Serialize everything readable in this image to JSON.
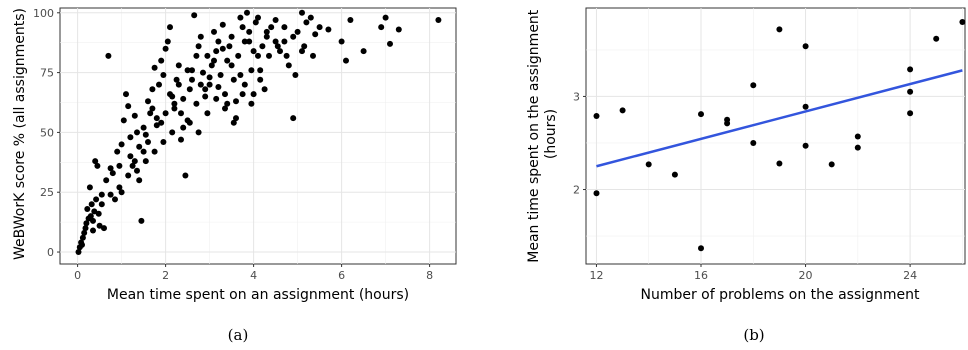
{
  "chart_data": [
    {
      "type": "scatter",
      "caption": "(a)",
      "xlabel": "Mean time spent on an assignment (hours)",
      "ylabel": "WeBWorK score % (all assignments)",
      "xlim": [
        -0.4,
        8.6
      ],
      "ylim": [
        -5,
        102
      ],
      "xticks": [
        0,
        2,
        4,
        6,
        8
      ],
      "yticks": [
        0,
        25,
        50,
        75,
        100
      ],
      "grid": true,
      "points": [
        [
          0.02,
          0
        ],
        [
          0.05,
          2
        ],
        [
          0.08,
          4
        ],
        [
          0.1,
          3
        ],
        [
          0.12,
          6
        ],
        [
          0.15,
          8
        ],
        [
          0.18,
          10
        ],
        [
          0.2,
          12
        ],
        [
          0.22,
          18
        ],
        [
          0.25,
          14
        ],
        [
          0.28,
          27
        ],
        [
          0.3,
          15
        ],
        [
          0.32,
          20
        ],
        [
          0.35,
          13
        ],
        [
          0.38,
          17
        ],
        [
          0.4,
          38
        ],
        [
          0.42,
          22
        ],
        [
          0.45,
          36
        ],
        [
          0.48,
          16
        ],
        [
          0.5,
          11
        ],
        [
          0.55,
          24
        ],
        [
          0.6,
          10
        ],
        [
          0.65,
          30
        ],
        [
          0.7,
          82
        ],
        [
          0.75,
          35
        ],
        [
          0.8,
          33
        ],
        [
          0.85,
          22
        ],
        [
          0.9,
          42
        ],
        [
          0.95,
          27
        ],
        [
          1.0,
          25
        ],
        [
          1.05,
          55
        ],
        [
          1.1,
          66
        ],
        [
          1.15,
          61
        ],
        [
          1.2,
          48
        ],
        [
          1.25,
          36
        ],
        [
          1.3,
          38
        ],
        [
          1.35,
          50
        ],
        [
          1.4,
          30
        ],
        [
          1.45,
          13
        ],
        [
          1.5,
          42
        ],
        [
          1.55,
          49
        ],
        [
          1.6,
          63
        ],
        [
          1.65,
          58
        ],
        [
          1.7,
          68
        ],
        [
          1.75,
          77
        ],
        [
          1.8,
          56
        ],
        [
          1.85,
          70
        ],
        [
          1.9,
          80
        ],
        [
          1.95,
          74
        ],
        [
          2.0,
          85
        ],
        [
          2.05,
          88
        ],
        [
          2.1,
          94
        ],
        [
          2.15,
          65
        ],
        [
          2.2,
          60
        ],
        [
          2.25,
          72
        ],
        [
          2.3,
          78
        ],
        [
          2.35,
          47
        ],
        [
          2.4,
          52
        ],
        [
          2.45,
          32
        ],
        [
          2.5,
          55
        ],
        [
          2.55,
          68
        ],
        [
          2.6,
          72
        ],
        [
          2.65,
          99
        ],
        [
          2.7,
          82
        ],
        [
          2.75,
          86
        ],
        [
          2.8,
          90
        ],
        [
          2.85,
          75
        ],
        [
          2.9,
          65
        ],
        [
          2.95,
          58
        ],
        [
          3.0,
          70
        ],
        [
          3.05,
          78
        ],
        [
          3.1,
          92
        ],
        [
          3.15,
          84
        ],
        [
          3.2,
          88
        ],
        [
          3.25,
          74
        ],
        [
          3.3,
          95
        ],
        [
          3.35,
          66
        ],
        [
          3.4,
          80
        ],
        [
          3.45,
          86
        ],
        [
          3.5,
          90
        ],
        [
          3.55,
          72
        ],
        [
          3.6,
          63
        ],
        [
          3.65,
          82
        ],
        [
          3.7,
          98
        ],
        [
          3.75,
          94
        ],
        [
          3.8,
          88
        ],
        [
          3.85,
          100
        ],
        [
          3.9,
          92
        ],
        [
          3.95,
          76
        ],
        [
          4.0,
          84
        ],
        [
          4.05,
          96
        ],
        [
          4.1,
          98
        ],
        [
          4.15,
          72
        ],
        [
          4.2,
          86
        ],
        [
          4.25,
          68
        ],
        [
          4.3,
          90
        ],
        [
          4.4,
          94
        ],
        [
          4.5,
          97
        ],
        [
          4.6,
          84
        ],
        [
          4.7,
          88
        ],
        [
          4.8,
          78
        ],
        [
          4.9,
          56
        ],
        [
          5.0,
          92
        ],
        [
          5.1,
          84
        ],
        [
          5.2,
          96
        ],
        [
          5.3,
          98
        ],
        [
          5.4,
          91
        ],
        [
          5.5,
          94
        ],
        [
          5.7,
          93
        ],
        [
          6.0,
          88
        ],
        [
          6.1,
          80
        ],
        [
          6.2,
          97
        ],
        [
          6.5,
          84
        ],
        [
          6.9,
          94
        ],
        [
          7.0,
          98
        ],
        [
          7.1,
          87
        ],
        [
          7.3,
          93
        ],
        [
          8.2,
          97
        ],
        [
          1.3,
          57
        ],
        [
          1.5,
          52
        ],
        [
          1.7,
          60
        ],
        [
          1.9,
          54
        ],
        [
          2.1,
          66
        ],
        [
          2.3,
          70
        ],
        [
          2.5,
          76
        ],
        [
          2.7,
          62
        ],
        [
          2.9,
          68
        ],
        [
          3.1,
          80
        ],
        [
          3.3,
          85
        ],
        [
          3.5,
          78
        ],
        [
          3.7,
          74
        ],
        [
          3.9,
          88
        ],
        [
          4.1,
          82
        ],
        [
          4.3,
          92
        ],
        [
          4.5,
          88
        ],
        [
          4.7,
          94
        ],
        [
          4.9,
          90
        ],
        [
          5.1,
          100
        ],
        [
          1.0,
          45
        ],
        [
          1.2,
          40
        ],
        [
          1.4,
          44
        ],
        [
          1.6,
          46
        ],
        [
          1.8,
          53
        ],
        [
          2.0,
          58
        ],
        [
          2.2,
          62
        ],
        [
          2.4,
          64
        ],
        [
          2.6,
          76
        ],
        [
          2.8,
          70
        ],
        [
          3.0,
          73
        ],
        [
          3.2,
          69
        ],
        [
          3.4,
          62
        ],
        [
          3.6,
          56
        ],
        [
          3.8,
          70
        ],
        [
          4.0,
          66
        ],
        [
          0.35,
          9
        ],
        [
          0.55,
          20
        ],
        [
          0.75,
          24
        ],
        [
          0.95,
          36
        ],
        [
          1.15,
          32
        ],
        [
          1.35,
          34
        ],
        [
          1.55,
          38
        ],
        [
          1.75,
          42
        ],
        [
          1.95,
          46
        ],
        [
          2.15,
          50
        ],
        [
          2.35,
          58
        ],
        [
          2.55,
          54
        ],
        [
          2.75,
          50
        ],
        [
          2.95,
          82
        ],
        [
          3.15,
          64
        ],
        [
          3.35,
          60
        ],
        [
          3.55,
          54
        ],
        [
          3.75,
          66
        ],
        [
          3.95,
          62
        ],
        [
          4.15,
          76
        ],
        [
          4.35,
          82
        ],
        [
          4.55,
          86
        ],
        [
          4.75,
          82
        ],
        [
          4.95,
          74
        ],
        [
          5.15,
          86
        ],
        [
          5.35,
          82
        ]
      ]
    },
    {
      "type": "scatter",
      "caption": "(b)",
      "xlabel": "Number of problems on the assignment",
      "ylabel": "Mean time spent on the assignment (hours)",
      "xlim": [
        11.6,
        26.1
      ],
      "ylim": [
        1.2,
        3.95
      ],
      "xticks": [
        12,
        16,
        20,
        24
      ],
      "yticks": [
        2,
        3
      ],
      "grid": true,
      "trendline": {
        "x": [
          12,
          26
        ],
        "y": [
          2.25,
          3.28
        ],
        "color": "#3355dd"
      },
      "points": [
        [
          12,
          2.79
        ],
        [
          12,
          1.96
        ],
        [
          13,
          2.85
        ],
        [
          14,
          2.27
        ],
        [
          15,
          2.16
        ],
        [
          16,
          2.81
        ],
        [
          16,
          1.37
        ],
        [
          17,
          2.75
        ],
        [
          17,
          2.71
        ],
        [
          18,
          3.12
        ],
        [
          18,
          2.5
        ],
        [
          19,
          3.72
        ],
        [
          19,
          2.28
        ],
        [
          20,
          3.54
        ],
        [
          20,
          2.89
        ],
        [
          20,
          2.47
        ],
        [
          21,
          2.27
        ],
        [
          22,
          2.57
        ],
        [
          22,
          2.45
        ],
        [
          24,
          3.29
        ],
        [
          24,
          3.05
        ],
        [
          24,
          2.82
        ],
        [
          25,
          3.62
        ],
        [
          26,
          3.8
        ]
      ]
    }
  ]
}
